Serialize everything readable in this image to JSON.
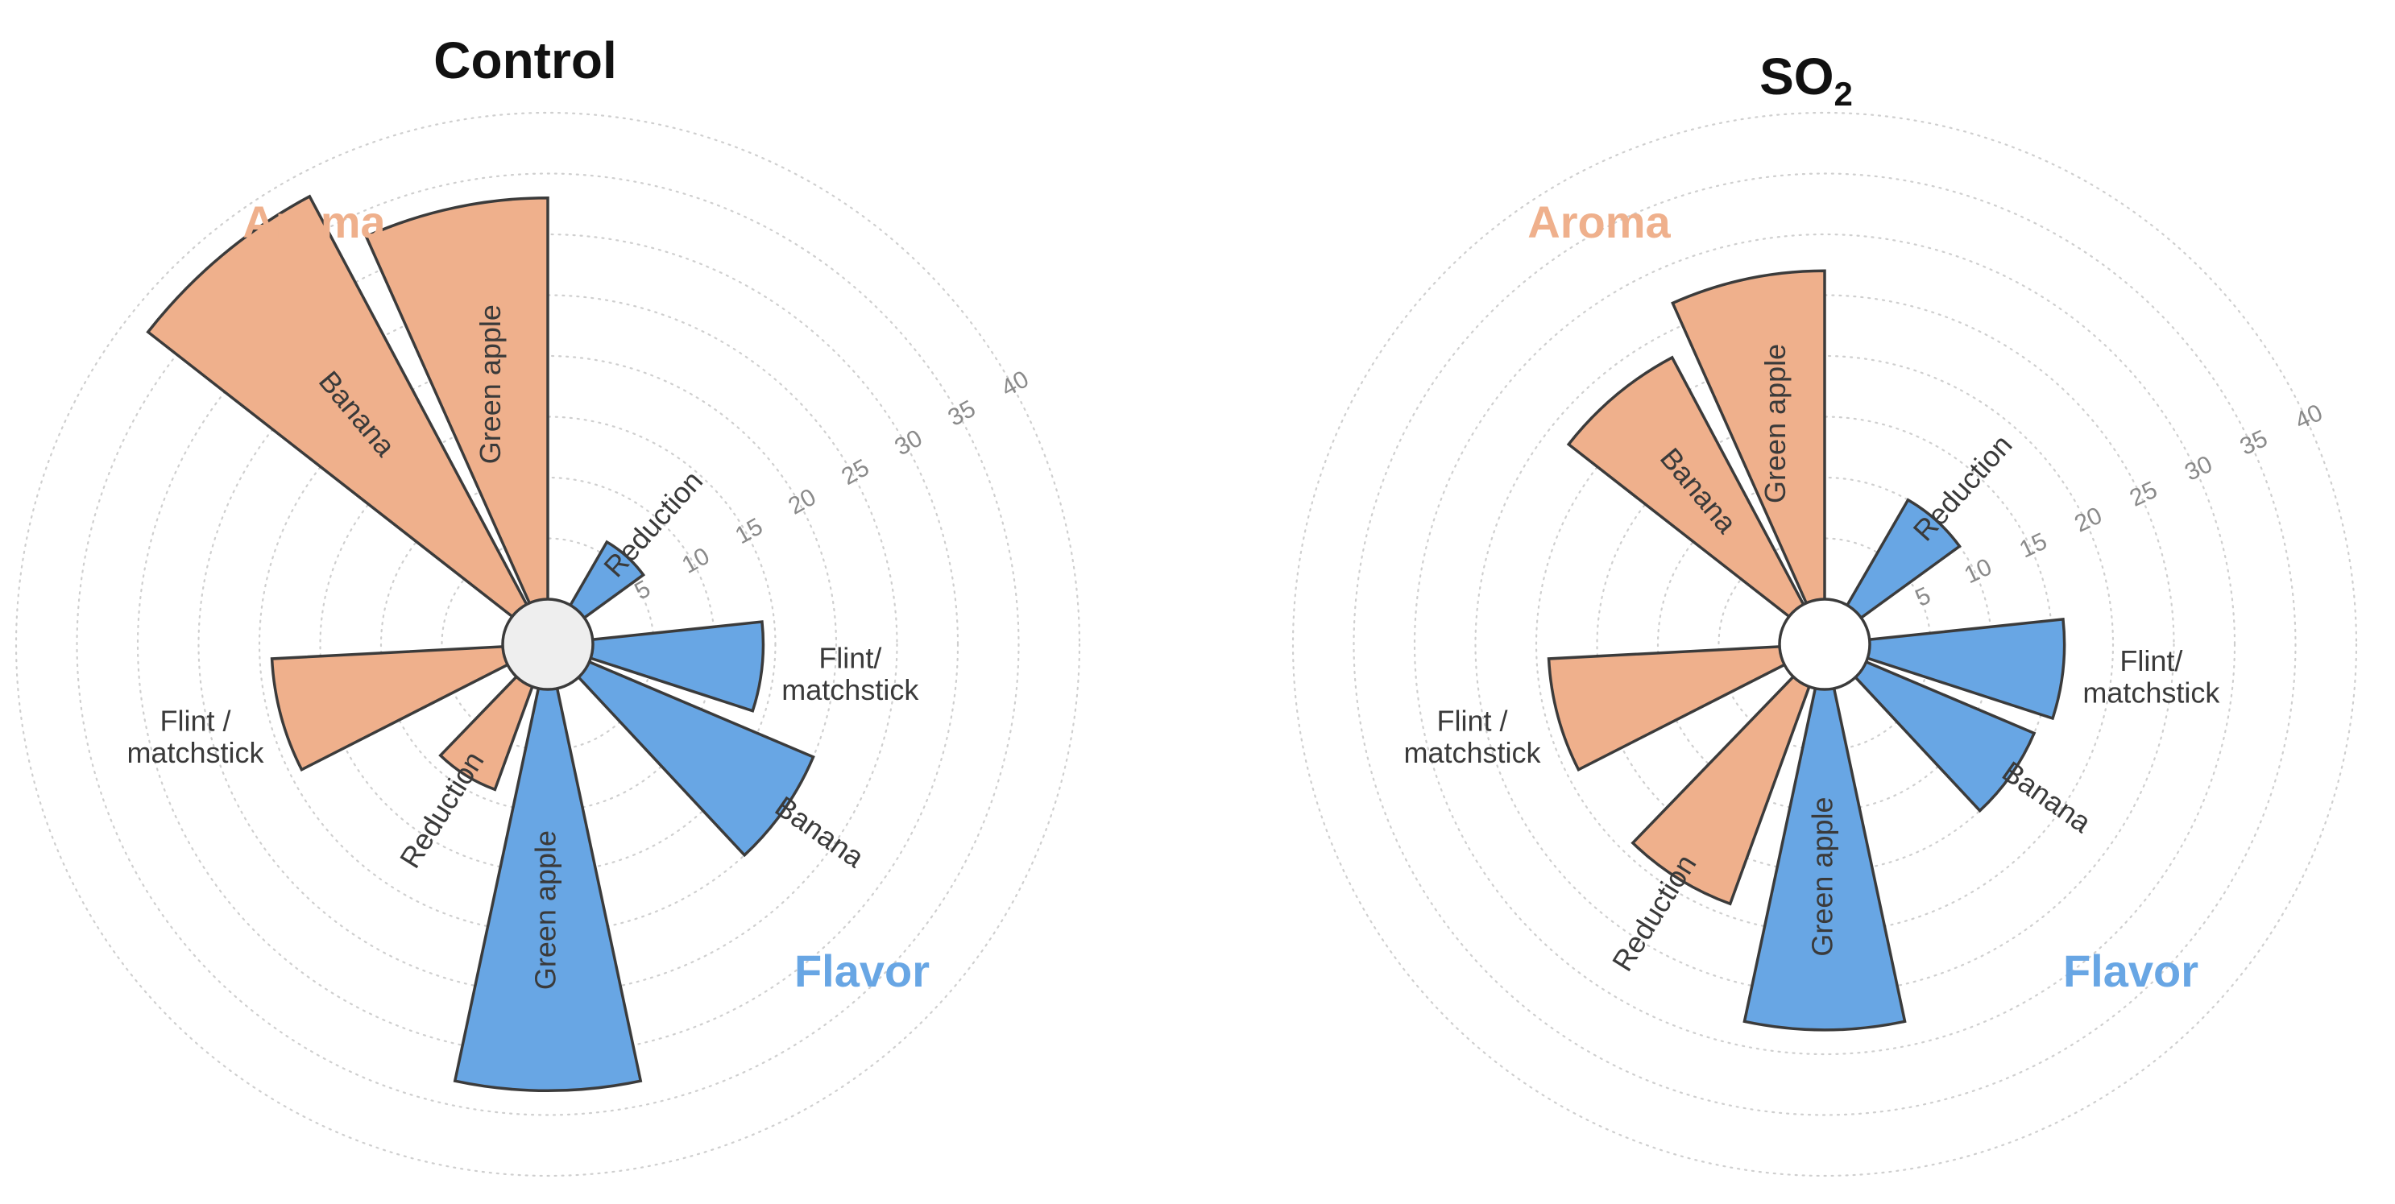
{
  "colors": {
    "aroma": "#efb08c",
    "flavor": "#68a6e4"
  },
  "chart_data": [
    {
      "type": "polar-bar",
      "title": "Control",
      "title_sub": "",
      "rlim": [
        0,
        40
      ],
      "rticks": [
        5,
        10,
        15,
        20,
        25,
        30,
        35,
        40
      ],
      "group_labels": {
        "aroma": "Aroma",
        "flavor": "Flavor"
      },
      "series": [
        {
          "name": "Aroma",
          "categories": [
            "Reduction",
            "Flint / matchstick",
            "Banana",
            "Green apple"
          ],
          "values": [
            9,
            19,
            38,
            33
          ]
        },
        {
          "name": "Flavor",
          "categories": [
            "Reduction",
            "Flint/ matchstick",
            "Banana",
            "Green apple"
          ],
          "values": [
            6,
            14,
            20,
            33
          ]
        }
      ]
    },
    {
      "type": "polar-bar",
      "title": "SO",
      "title_sub": "2",
      "rlim": [
        0,
        40
      ],
      "rticks": [
        5,
        10,
        15,
        20,
        25,
        30,
        35,
        40
      ],
      "group_labels": {
        "aroma": "Aroma",
        "flavor": "Flavor"
      },
      "series": [
        {
          "name": "Aroma",
          "categories": [
            "Reduction",
            "Flint / matchstick",
            "Banana",
            "Green apple"
          ],
          "values": [
            19,
            19,
            23,
            27
          ]
        },
        {
          "name": "Flavor",
          "categories": [
            "Reduction",
            "Flint/ matchstick",
            "Banana",
            "Green apple"
          ],
          "values": [
            10,
            16,
            15,
            28
          ]
        }
      ]
    }
  ]
}
